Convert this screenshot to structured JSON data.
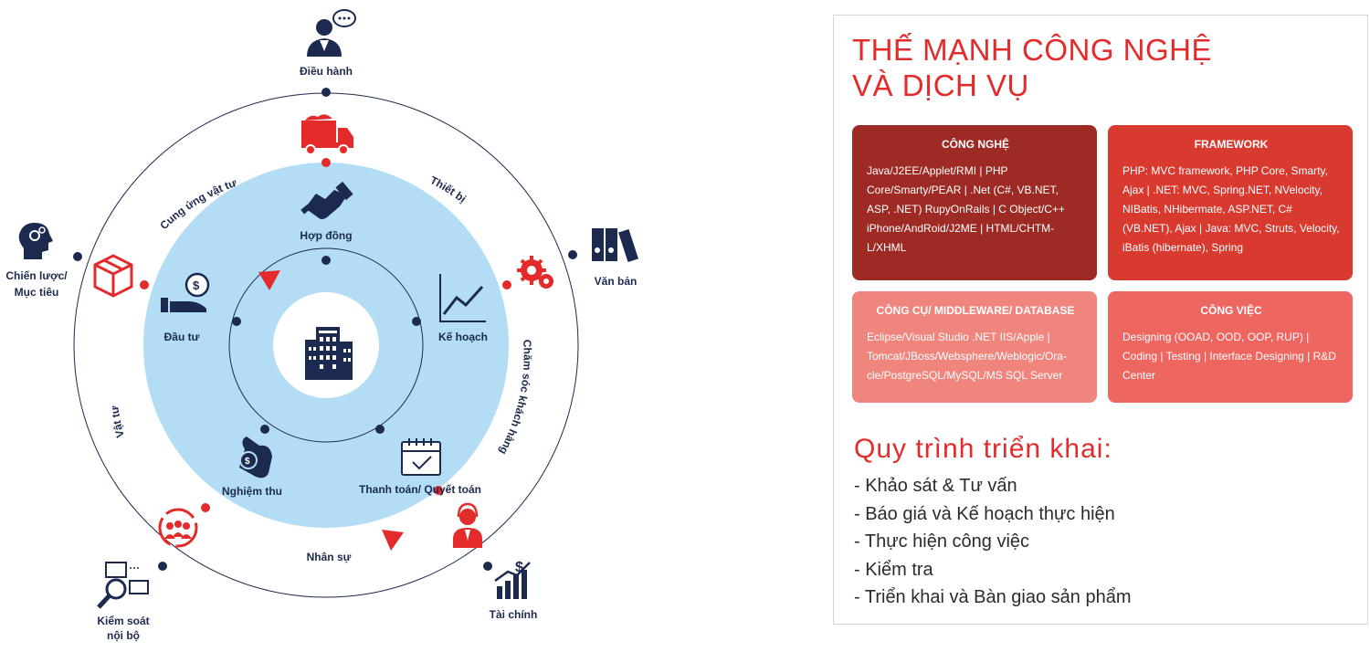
{
  "diagram": {
    "center_icon": "office-building-icon",
    "outer": [
      {
        "id": "dieu-hanh",
        "label": [
          "Điều hành"
        ],
        "icon": "manager-chat-icon"
      },
      {
        "id": "van-ban",
        "label": [
          "Văn bản"
        ],
        "icon": "binders-icon"
      },
      {
        "id": "tai-chinh",
        "label": [
          "Tài chính"
        ],
        "icon": "finance-chart-icon"
      },
      {
        "id": "kiem-soat",
        "label": [
          "Kiểm soát",
          "nội bộ"
        ],
        "icon": "inspection-icon"
      },
      {
        "id": "chien-luoc",
        "label": [
          "Chiến lược/",
          "Mục tiêu"
        ],
        "icon": "strategy-head-icon"
      }
    ],
    "middle": [
      {
        "id": "hop-dong",
        "label": "Hợp đồng",
        "icon": "handshake-icon"
      },
      {
        "id": "ke-hoach",
        "label": "Kế hoạch",
        "icon": "line-chart-icon"
      },
      {
        "id": "thanh-toan",
        "label": "Thanh toán/ Quyết toán",
        "icon": "calendar-check-icon"
      },
      {
        "id": "nghiem-thu",
        "label": "Nghiệm thu",
        "icon": "ok-hand-coin-icon"
      },
      {
        "id": "dau-tu",
        "label": "Đầu tư",
        "icon": "hand-coin-icon"
      }
    ],
    "ring_labels": {
      "cung_ung": "Cung ứng vật tư",
      "thiet_bi": "Thiết bị",
      "cham_soc": "Chăm sóc khách hàng",
      "nhan_su": "Nhân sự",
      "vat_tu": "Vật tư"
    },
    "red_icons": [
      "truck-icon",
      "gears-icon",
      "headset-agent-icon",
      "team-cycle-icon",
      "box-icon"
    ],
    "colors": {
      "navy": "#1b2a4e",
      "red": "#e32b2b",
      "light_blue": "#b3dcf5"
    }
  },
  "panel": {
    "title": "THẾ MẠNH CÔNG NGHỆ\nVÀ DỊCH VỤ",
    "cards": {
      "tech": {
        "title": "CÔNG NGHỆ",
        "body": "Java/J2EE/Applet/RMI | PHP Core/Smarty/PEAR | .Net (C#, VB.NET, ASP, .NET) RupyOnRails | C Object/C++ iPhone/AndRoid/J2ME | HTML/CHTM-L/XHML"
      },
      "framework": {
        "title": "FRAMEWORK",
        "body": "PHP: MVC framework, PHP Core, Smarty, Ajax | .NET: MVC, Spring.NET, NVelocity, NIBatis, NHibermate, ASP.NET, C# (VB.NET), Ajax | Java: MVC, Struts, Velocity, iBatis (hibernate), Spring"
      },
      "tools": {
        "title": "CÔNG CỤ/ MIDDLEWARE/ DATABASE",
        "body": "Eclipse/Visual Studio .NET IIS/Apple | Tomcat/JBoss/Websphere/Weblogic/Ora-cle/PostgreSQL/MySQL/MS SQL Server"
      },
      "work": {
        "title": "CÔNG VIỆC",
        "body": "Designing (OOAD, OOD, OOP, RUP) | Coding | Testing | Interface Designing | R&D Center"
      }
    },
    "process_title": "Quy trình triển khai:",
    "process_steps": [
      "Khảo sát & Tư vấn",
      "Báo giá và Kế hoạch thực hiện",
      "Thực hiện công việc",
      "Kiểm tra",
      "Triển khai và Bàn giao sản phẩm"
    ],
    "colors": {
      "title_red": "#e32b2b",
      "card_dark": "#9e2a24",
      "card_red": "#d93a30",
      "card_salmon": "#ef857d",
      "card_coral": "#ee6660"
    }
  }
}
